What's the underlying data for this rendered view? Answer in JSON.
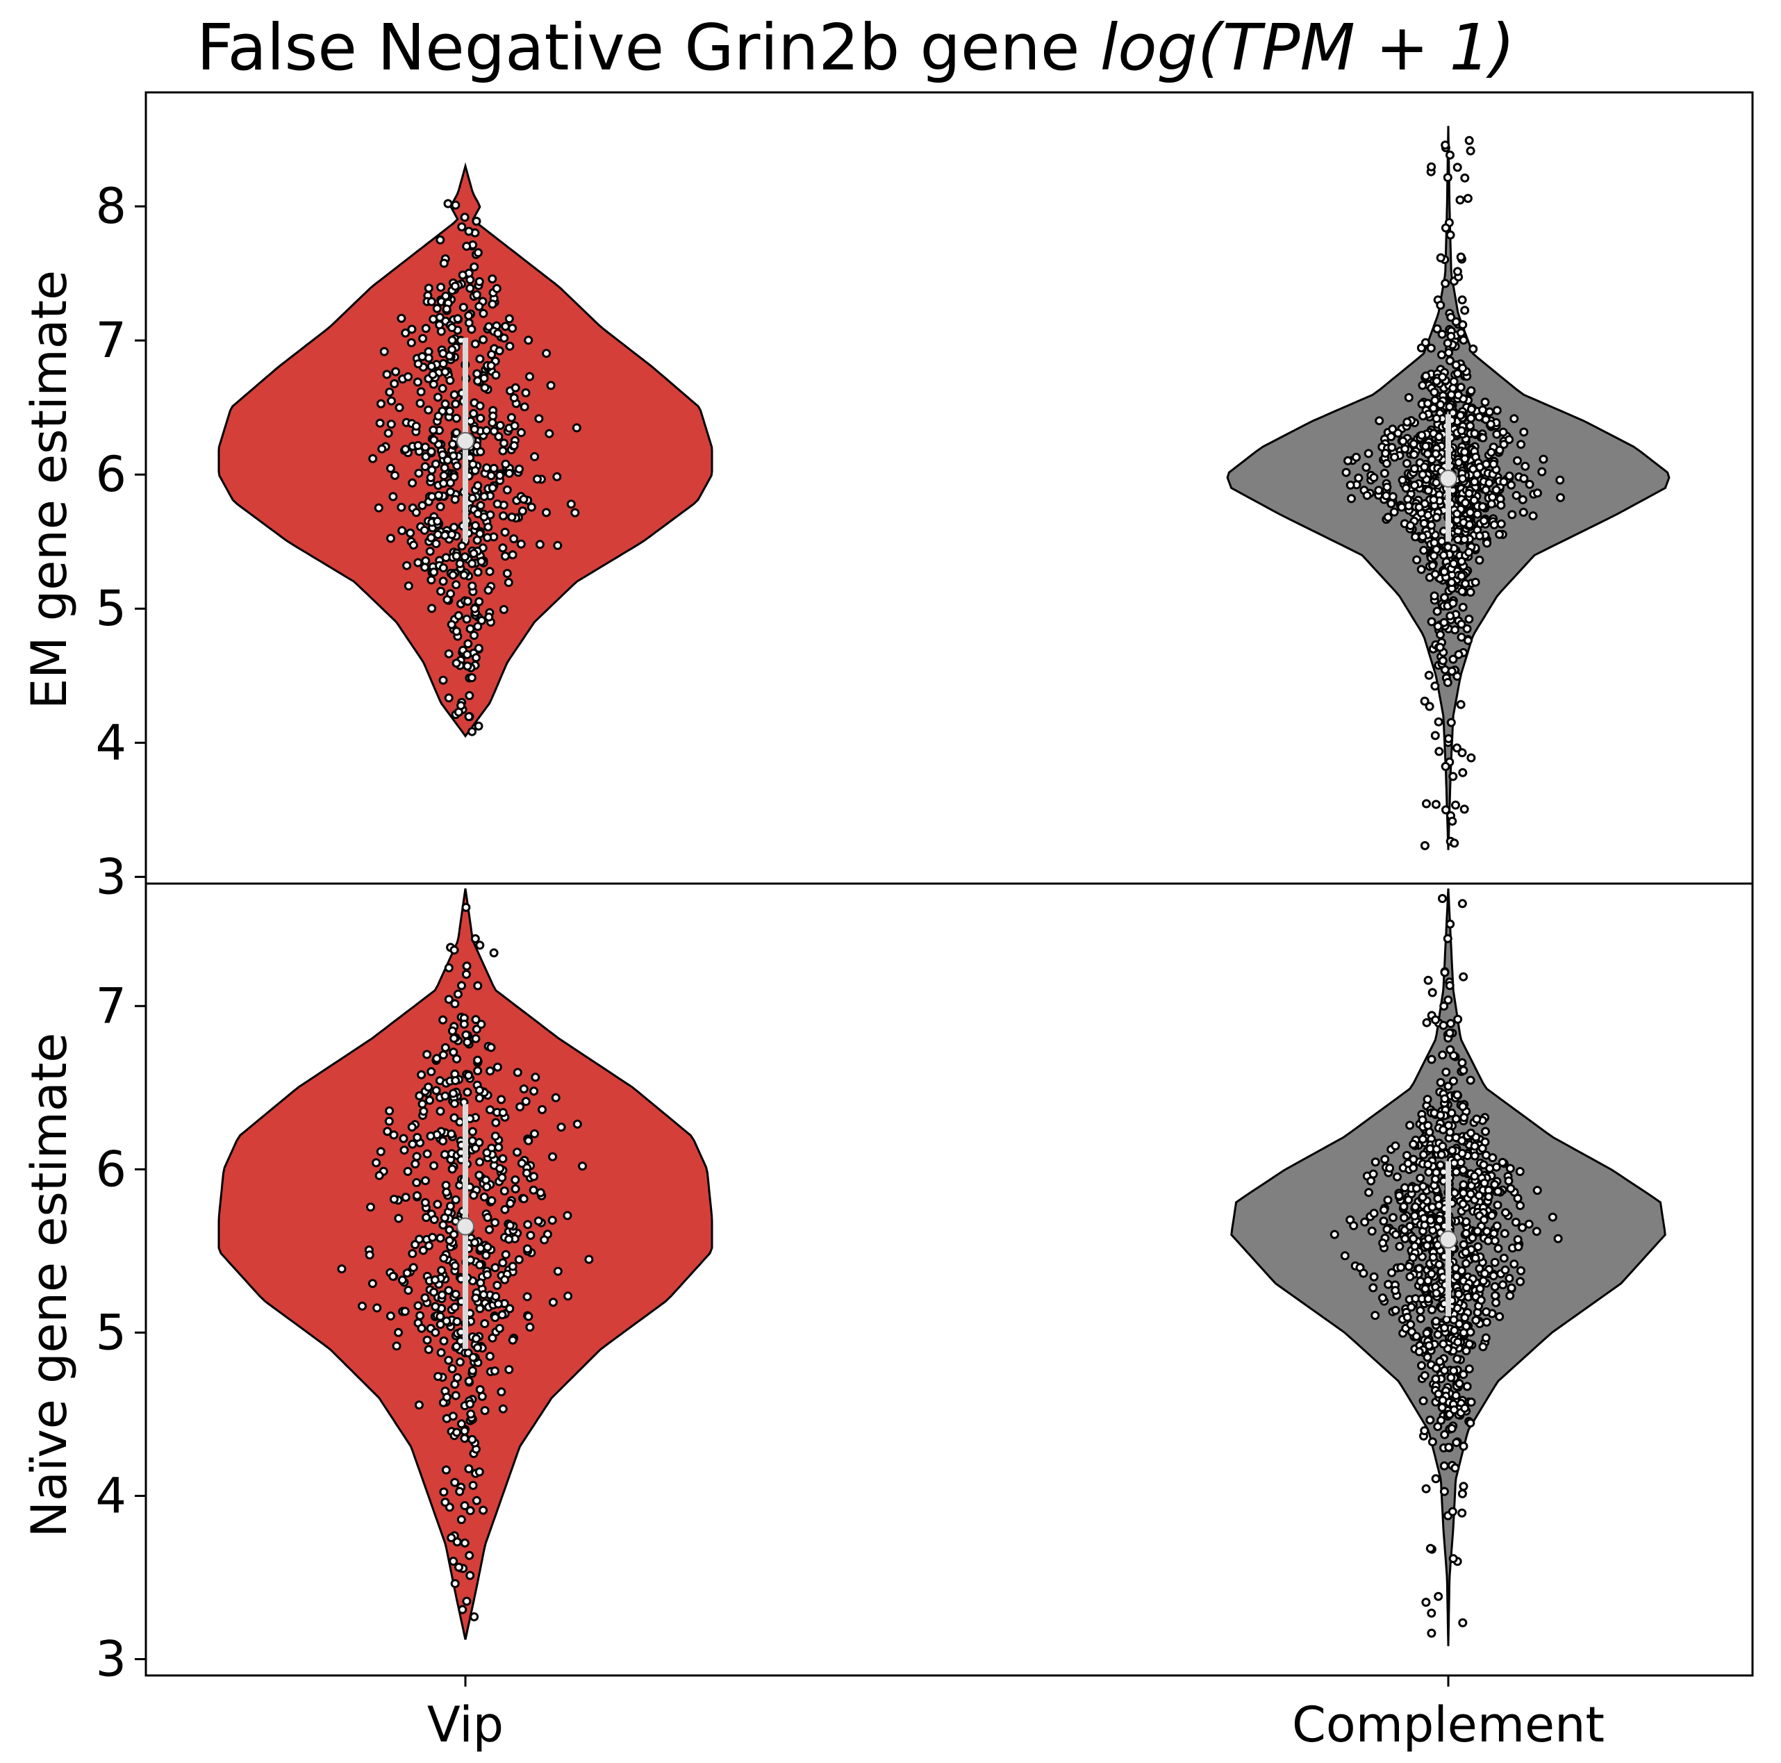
{
  "chart_data": [
    {
      "type": "violin",
      "panel": "top",
      "title": "False Negative Grin2b gene log(TPM + 1)",
      "title_parts": {
        "plain": "False Negative Grin2b gene ",
        "math": "log(TPM + 1)"
      },
      "ylabel": "EM gene estimate",
      "xlabel": "",
      "ylim": [
        2.95,
        8.85
      ],
      "yticks": [
        3,
        4,
        5,
        6,
        7,
        8
      ],
      "categories": [
        "Vip",
        "Complement"
      ],
      "series": [
        {
          "category": "Vip",
          "color": "#d43f3a",
          "median": 6.25,
          "q1": 5.5,
          "q3": 7.02,
          "min": 4.05,
          "max": 8.3,
          "density": [
            [
              4.05,
              0.0
            ],
            [
              4.3,
              0.1
            ],
            [
              4.6,
              0.17
            ],
            [
              4.9,
              0.28
            ],
            [
              5.2,
              0.45
            ],
            [
              5.5,
              0.72
            ],
            [
              5.8,
              0.94
            ],
            [
              6.0,
              1.0
            ],
            [
              6.2,
              1.0
            ],
            [
              6.5,
              0.95
            ],
            [
              6.8,
              0.76
            ],
            [
              7.1,
              0.55
            ],
            [
              7.4,
              0.38
            ],
            [
              7.6,
              0.24
            ],
            [
              7.8,
              0.1
            ],
            [
              7.9,
              0.03
            ],
            [
              8.0,
              0.06
            ],
            [
              8.1,
              0.03
            ],
            [
              8.3,
              0.0
            ]
          ]
        },
        {
          "category": "Complement",
          "color": "#808080",
          "median": 5.97,
          "q1": 5.5,
          "q3": 6.45,
          "min": 3.2,
          "max": 8.6,
          "density": [
            [
              3.2,
              0.0
            ],
            [
              3.5,
              0.005
            ],
            [
              3.8,
              0.01
            ],
            [
              4.2,
              0.02
            ],
            [
              4.5,
              0.05
            ],
            [
              4.8,
              0.1
            ],
            [
              5.1,
              0.2
            ],
            [
              5.4,
              0.35
            ],
            [
              5.7,
              0.68
            ],
            [
              5.9,
              0.88
            ],
            [
              6.0,
              0.9
            ],
            [
              6.2,
              0.76
            ],
            [
              6.4,
              0.55
            ],
            [
              6.6,
              0.3
            ],
            [
              6.9,
              0.1
            ],
            [
              7.2,
              0.04
            ],
            [
              7.5,
              0.012
            ],
            [
              8.0,
              0.005
            ],
            [
              8.6,
              0.0
            ]
          ]
        }
      ]
    },
    {
      "type": "violin",
      "panel": "bottom",
      "ylabel": "Naïve gene estimate",
      "xlabel": "",
      "ylim": [
        2.9,
        7.75
      ],
      "yticks": [
        3,
        4,
        5,
        6,
        7
      ],
      "categories": [
        "Vip",
        "Complement"
      ],
      "series": [
        {
          "category": "Vip",
          "color": "#d43f3a",
          "median": 5.65,
          "q1": 4.9,
          "q3": 6.4,
          "min": 3.12,
          "max": 7.72,
          "density": [
            [
              3.12,
              0.0
            ],
            [
              3.4,
              0.04
            ],
            [
              3.7,
              0.08
            ],
            [
              4.0,
              0.15
            ],
            [
              4.3,
              0.22
            ],
            [
              4.6,
              0.35
            ],
            [
              4.9,
              0.55
            ],
            [
              5.2,
              0.82
            ],
            [
              5.5,
              1.0
            ],
            [
              5.7,
              1.0
            ],
            [
              6.0,
              0.98
            ],
            [
              6.2,
              0.92
            ],
            [
              6.5,
              0.68
            ],
            [
              6.8,
              0.38
            ],
            [
              7.1,
              0.12
            ],
            [
              7.4,
              0.03
            ],
            [
              7.72,
              0.0
            ]
          ]
        },
        {
          "category": "Complement",
          "color": "#808080",
          "median": 5.57,
          "q1": 5.1,
          "q3": 6.05,
          "min": 3.08,
          "max": 7.72,
          "density": [
            [
              3.08,
              0.0
            ],
            [
              3.5,
              0.005
            ],
            [
              3.8,
              0.02
            ],
            [
              4.1,
              0.03
            ],
            [
              4.4,
              0.08
            ],
            [
              4.7,
              0.2
            ],
            [
              5.0,
              0.42
            ],
            [
              5.3,
              0.7
            ],
            [
              5.6,
              0.88
            ],
            [
              5.8,
              0.86
            ],
            [
              6.0,
              0.66
            ],
            [
              6.2,
              0.42
            ],
            [
              6.5,
              0.15
            ],
            [
              6.8,
              0.05
            ],
            [
              7.1,
              0.02
            ],
            [
              7.72,
              0.0
            ]
          ]
        }
      ]
    }
  ]
}
